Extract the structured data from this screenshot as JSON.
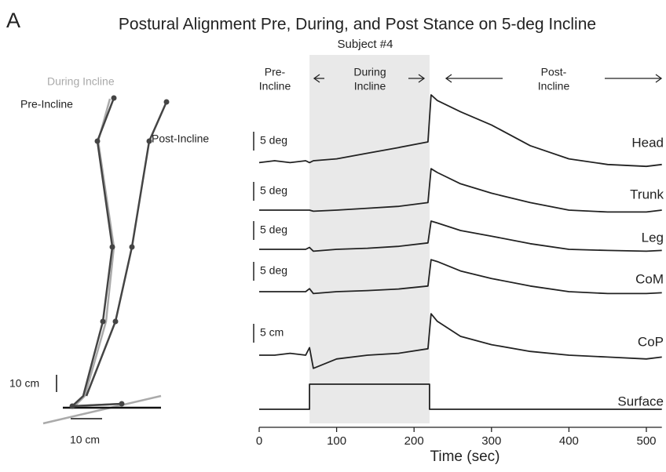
{
  "figure": {
    "label": "A",
    "title": "Postural Alignment Pre, During, and Post Stance on 5-deg Incline",
    "subtitle": "Subject #4"
  },
  "stick_figure": {
    "during": "During Incline",
    "pre": "Pre-Incline",
    "post": "Post-Incline",
    "vertical_scale": "10 cm",
    "horizontal_scale": "10 cm"
  },
  "chart_data": {
    "type": "line",
    "phases": [
      {
        "lines": [
          "Pre-",
          "Incline"
        ]
      },
      {
        "lines": [
          "During",
          "Incline"
        ]
      },
      {
        "lines": [
          "Post-",
          "Incline"
        ]
      }
    ],
    "incline_period": [
      65,
      220
    ],
    "x": [
      0,
      20,
      40,
      60,
      65,
      70,
      100,
      140,
      180,
      218,
      222,
      230,
      260,
      300,
      350,
      400,
      450,
      500,
      520
    ],
    "xlim": [
      0,
      520
    ],
    "xticks": [
      0,
      100,
      200,
      300,
      400,
      500
    ],
    "xlabel": "Time (sec)",
    "series": [
      {
        "name": "Head",
        "scale_label": "5 deg",
        "color": "#222222",
        "values": [
          -0.5,
          0,
          -0.5,
          0,
          -0.5,
          0,
          0.5,
          2,
          3.5,
          5,
          17.5,
          16,
          13,
          9.5,
          4,
          0.5,
          -1,
          -1.5,
          -1
        ]
      },
      {
        "name": "Trunk",
        "scale_label": "5 deg",
        "color": "#222222",
        "values": [
          0,
          0,
          0,
          0,
          0,
          -0.3,
          0,
          0.5,
          1,
          2,
          11,
          10,
          7,
          4.5,
          2,
          0,
          -0.5,
          -0.5,
          0
        ]
      },
      {
        "name": "Leg",
        "scale_label": "5 deg",
        "color": "#222222",
        "values": [
          0,
          0,
          0,
          0,
          0.5,
          -0.5,
          0,
          0.3,
          0.8,
          1.7,
          7.5,
          7,
          5,
          3.5,
          1.5,
          0,
          -0.3,
          -0.5,
          -0.3
        ]
      },
      {
        "name": "CoM",
        "scale_label": "5 deg",
        "color": "#222222",
        "values": [
          0,
          0,
          0,
          0,
          0.8,
          -0.5,
          0,
          0.3,
          0.7,
          1.5,
          8.5,
          8,
          5.5,
          3.5,
          1.5,
          0,
          -0.5,
          -0.5,
          -0.3
        ]
      },
      {
        "name": "CoP",
        "scale_label": "5 cm",
        "color": "#222222",
        "values": [
          0,
          0,
          0.5,
          0,
          2,
          -3.5,
          -1,
          0,
          0.5,
          1.7,
          11,
          9,
          5,
          2.8,
          1,
          0,
          -0.5,
          -1,
          -0.5
        ]
      },
      {
        "name": "Surface",
        "color": "#222222",
        "x": [
          0,
          65,
          65,
          220,
          220,
          520
        ],
        "values": [
          0,
          0,
          5,
          5,
          0,
          0
        ]
      }
    ]
  }
}
